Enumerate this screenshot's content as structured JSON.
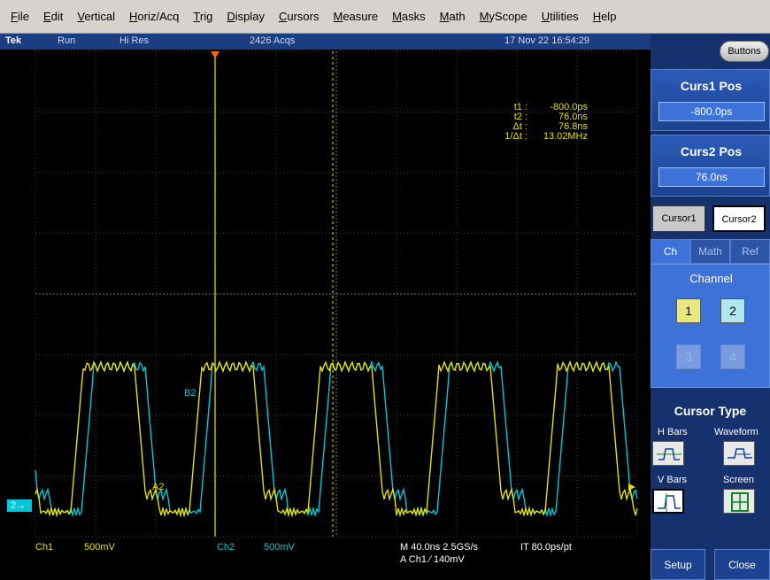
{
  "menu": [
    "File",
    "Edit",
    "Vertical",
    "Horiz/Acq",
    "Trig",
    "Display",
    "Cursors",
    "Measure",
    "Masks",
    "Math",
    "MyScope",
    "Utilities",
    "Help"
  ],
  "status": {
    "brand": "Tek",
    "run": "Run",
    "mode": "Hi Res",
    "acqs": "2426 Acqs",
    "datetime": "17 Nov 22 16:54:29"
  },
  "readout": [
    {
      "label": "t1 :",
      "value": "-800.0ps"
    },
    {
      "label": "t2 :",
      "value": "76.0ns"
    },
    {
      "label": "Δt :",
      "value": "76.8ns"
    },
    {
      "label": "1/Δt :",
      "value": "13.02MHz"
    }
  ],
  "waveform_labels": {
    "b2": "B2",
    "a2": "A2",
    "ch_marker": "2"
  },
  "bottom": {
    "ch1": "Ch1",
    "ch1_scale": "500mV",
    "ch2": "Ch2",
    "ch2_scale": "500mV",
    "timebase": "M 40.0ns 2.5GS/s",
    "it": "IT 80.0ps/pt",
    "trigger": "A  Ch1  ∕  140mV"
  },
  "panel": {
    "buttons_label": "Buttons",
    "curs1_title": "Curs1 Pos",
    "curs1_value": "-800.0ps",
    "curs2_title": "Curs2 Pos",
    "curs2_value": "76.0ns",
    "cursor1": "Cursor1",
    "cursor2": "Cursor2",
    "tabs": [
      "Ch",
      "Math",
      "Ref"
    ],
    "channel_title": "Channel",
    "channels": [
      "1",
      "2",
      "3",
      "4"
    ],
    "cursor_type_title": "Cursor Type",
    "types": [
      "H Bars",
      "Waveform",
      "V Bars",
      "Screen"
    ],
    "setup": "Setup",
    "close": "Close"
  },
  "colors": {
    "ch1": "#e8e000",
    "ch2": "#00c8d8",
    "panel": "#16326e"
  }
}
